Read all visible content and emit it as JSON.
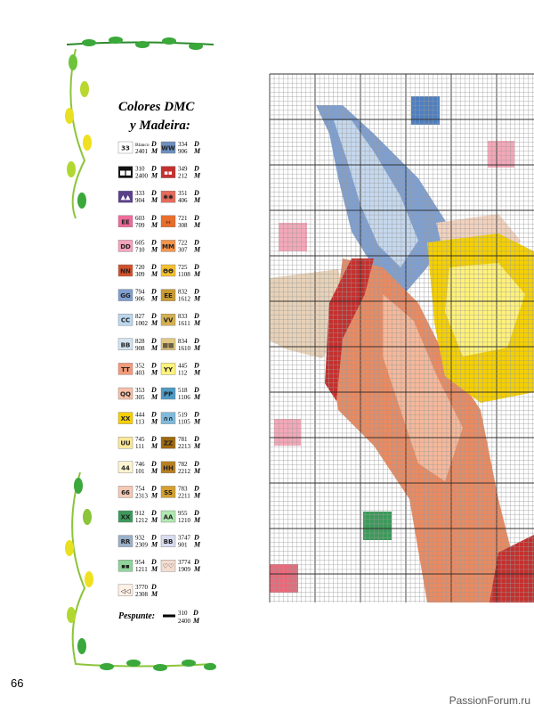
{
  "legend": {
    "title_line1": "Colores DMC",
    "title_line2": "y Madeira:",
    "dmc_mark": "D",
    "madeira_mark": "M",
    "left": [
      {
        "symbol": "33",
        "dmc": "Blanco",
        "madeira": "2401",
        "color": "#ffffff"
      },
      {
        "symbol": "■■",
        "dmc": "310",
        "madeira": "2400",
        "color": "#111111"
      },
      {
        "symbol": "▲▲",
        "dmc": "333",
        "madeira": "904",
        "color": "#5a3f8a"
      },
      {
        "symbol": "EE",
        "dmc": "603",
        "madeira": "709",
        "color": "#f06a9a"
      },
      {
        "symbol": "DD",
        "dmc": "605",
        "madeira": "710",
        "color": "#f5a3bd"
      },
      {
        "symbol": "NN",
        "dmc": "720",
        "madeira": "309",
        "color": "#d2502a"
      },
      {
        "symbol": "GG",
        "dmc": "794",
        "madeira": "906",
        "color": "#7f9fcf"
      },
      {
        "symbol": "CC",
        "dmc": "827",
        "madeira": "1002",
        "color": "#bcd8ee"
      },
      {
        "symbol": "BB",
        "dmc": "828",
        "madeira": "908",
        "color": "#d2e4f0"
      },
      {
        "symbol": "TT",
        "dmc": "352",
        "madeira": "403",
        "color": "#f39a7a"
      },
      {
        "symbol": "QQ",
        "dmc": "353",
        "madeira": "305",
        "color": "#f8c0a8"
      },
      {
        "symbol": "XX",
        "dmc": "444",
        "madeira": "113",
        "color": "#f5d000"
      },
      {
        "symbol": "UU",
        "dmc": "745",
        "madeira": "111",
        "color": "#fce89a"
      },
      {
        "symbol": "44",
        "dmc": "746",
        "madeira": "101",
        "color": "#fff5d0"
      },
      {
        "symbol": "66",
        "dmc": "754",
        "madeira": "2313",
        "color": "#f5c9b5"
      },
      {
        "symbol": "XX",
        "dmc": "912",
        "madeira": "1212",
        "color": "#3c9a5a"
      },
      {
        "symbol": "RR",
        "dmc": "932",
        "madeira": "2309",
        "color": "#9ab0c8"
      },
      {
        "symbol": "▪▪",
        "dmc": "954",
        "madeira": "1211",
        "color": "#8fd49a"
      },
      {
        "symbol": "◁◁",
        "dmc": "3770",
        "madeira": "2308",
        "color": "#fff0e6"
      }
    ],
    "right": [
      {
        "symbol": "WW",
        "dmc": "334",
        "madeira": "906",
        "color": "#6d8fbf"
      },
      {
        "symbol": "▪▪",
        "dmc": "349",
        "madeira": "212",
        "color": "#c4302e"
      },
      {
        "symbol": "✱✱",
        "dmc": "351",
        "madeira": "406",
        "color": "#e86a5a"
      },
      {
        "symbol": "‹‹",
        "dmc": "721",
        "madeira": "308",
        "color": "#e86e2a"
      },
      {
        "symbol": "MM",
        "dmc": "722",
        "madeira": "307",
        "color": "#f5954a"
      },
      {
        "symbol": "ΘΘ",
        "dmc": "725",
        "madeira": "1108",
        "color": "#f5c030"
      },
      {
        "symbol": "EE",
        "dmc": "832",
        "madeira": "1612",
        "color": "#c89a30"
      },
      {
        "symbol": "VV",
        "dmc": "833",
        "madeira": "1611",
        "color": "#d4b050"
      },
      {
        "symbol": "▦▦",
        "dmc": "834",
        "madeira": "1610",
        "color": "#e0c880"
      },
      {
        "symbol": "YY",
        "dmc": "445",
        "madeira": "112",
        "color": "#fff27a"
      },
      {
        "symbol": "PP",
        "dmc": "518",
        "madeira": "1106",
        "color": "#4f9bc4"
      },
      {
        "symbol": "∩∩",
        "dmc": "519",
        "madeira": "1105",
        "color": "#7fbbdc"
      },
      {
        "symbol": "ZZ",
        "dmc": "781",
        "madeira": "2213",
        "color": "#a06a10"
      },
      {
        "symbol": "HH",
        "dmc": "782",
        "madeira": "2212",
        "color": "#b88020"
      },
      {
        "symbol": "SS",
        "dmc": "783",
        "madeira": "2211",
        "color": "#d4a030"
      },
      {
        "symbol": "AA",
        "dmc": "955",
        "madeira": "1210",
        "color": "#b0e8b0"
      },
      {
        "symbol": "BB",
        "dmc": "3747",
        "madeira": "901",
        "color": "#d8dcef"
      },
      {
        "symbol": "♡♡",
        "dmc": "3774",
        "madeira": "1909",
        "color": "#f3dcd0"
      }
    ]
  },
  "backstitch": {
    "label": "Pespunte:",
    "dmc": "310",
    "madeira": "2400"
  },
  "page_number": "66",
  "watermark": "PassionForum.ru"
}
